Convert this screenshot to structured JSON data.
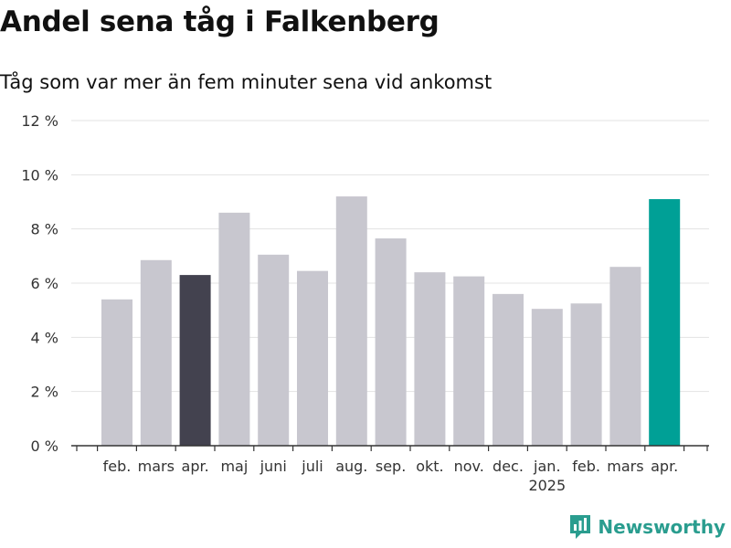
{
  "header": {
    "title": "Andel sena tåg i Falkenberg",
    "subtitle": "Tåg som var mer än fem minuter sena vid ankomst"
  },
  "logo": {
    "text": "Newsworthy",
    "icon": "chart-logo-icon"
  },
  "colors": {
    "default_bar": "#c8c7cf",
    "highlight_dark": "#43424f",
    "highlight_current": "#00a096",
    "grid": "#e3e3e3",
    "axis": "#333333",
    "brand": "#2a9d8f"
  },
  "chart_data": {
    "type": "bar",
    "categories": [
      "feb.",
      "mars",
      "apr.",
      "maj",
      "juni",
      "juli",
      "aug.",
      "sep.",
      "okt.",
      "nov.",
      "dec.",
      "jan.",
      "feb.",
      "mars",
      "apr."
    ],
    "values": [
      5.4,
      6.85,
      6.3,
      8.6,
      7.05,
      6.45,
      9.2,
      7.65,
      6.4,
      6.25,
      5.6,
      5.05,
      5.25,
      6.6,
      9.1
    ],
    "bar_roles": [
      "default",
      "default",
      "dark",
      "default",
      "default",
      "default",
      "default",
      "default",
      "default",
      "default",
      "default",
      "default",
      "default",
      "default",
      "current"
    ],
    "year_labels": [
      {
        "index": 11,
        "label": "2025"
      }
    ],
    "y_ticks": [
      0,
      2,
      4,
      6,
      8,
      10,
      12
    ],
    "y_tick_suffix": " %",
    "ylim": [
      0,
      12
    ],
    "grid": true,
    "legend": "none"
  }
}
